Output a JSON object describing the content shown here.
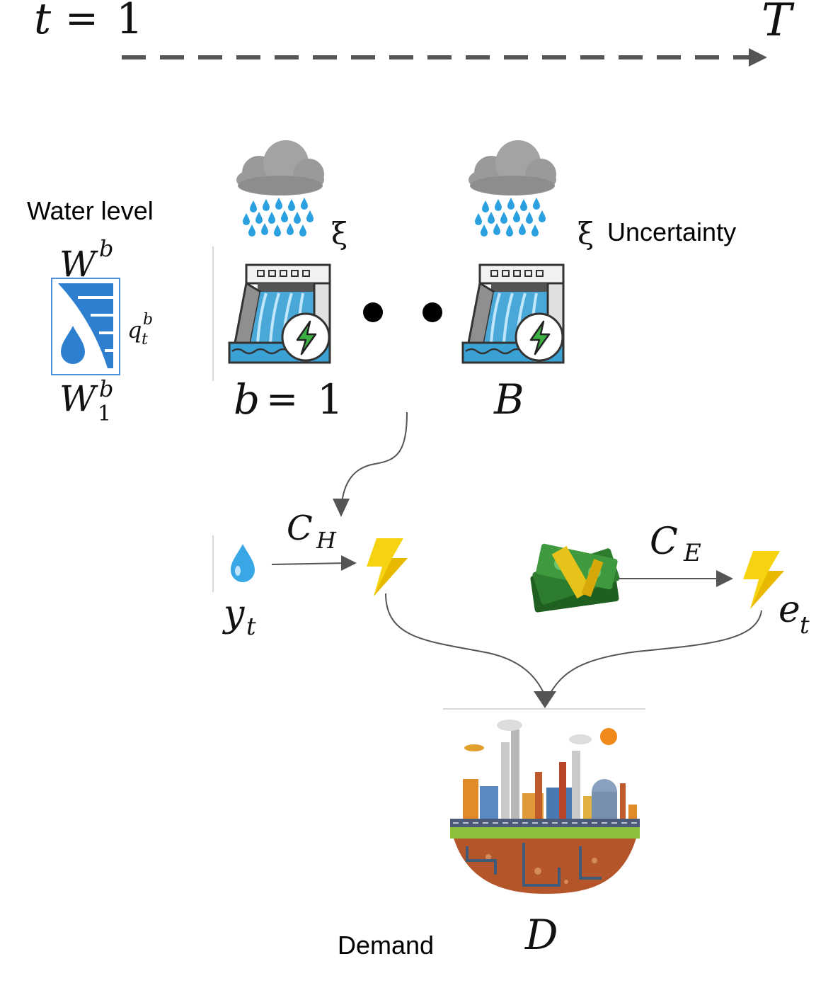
{
  "timeline": {
    "start_var": "t",
    "start_eq": "=",
    "start_val": "1",
    "end_label": "T"
  },
  "water_level": {
    "label": "Water level",
    "max_base": "W",
    "max_sup": "b",
    "min_base": "W",
    "min_sup": "b",
    "min_sub": "1",
    "flow_base": "q",
    "flow_sup": "b",
    "flow_sub": "t"
  },
  "dams": {
    "uncertainty_symbol_1": "ξ",
    "uncertainty_symbol_2": "ξ",
    "uncertainty_label": "Uncertainty",
    "first_var": "b",
    "first_eq": "=",
    "first_val": "1",
    "last_label": "B"
  },
  "flows": {
    "hydro_cost_base": "C",
    "hydro_cost_sub": "H",
    "hydro_var_base": "y",
    "hydro_var_sub": "t",
    "external_cost_base": "C",
    "external_cost_sub": "E",
    "external_var_base": "e",
    "external_var_sub": "t"
  },
  "demand": {
    "label": "Demand",
    "symbol": "D"
  },
  "colors": {
    "arrow": "#555555",
    "dashed": "#555555",
    "water_blue": "#2f7fd1",
    "bolt_yellow": "#f6d310",
    "bolt_green": "#3cb043",
    "cloud_gray": "#9a9a9a",
    "money_green": "#2e7d2e"
  }
}
